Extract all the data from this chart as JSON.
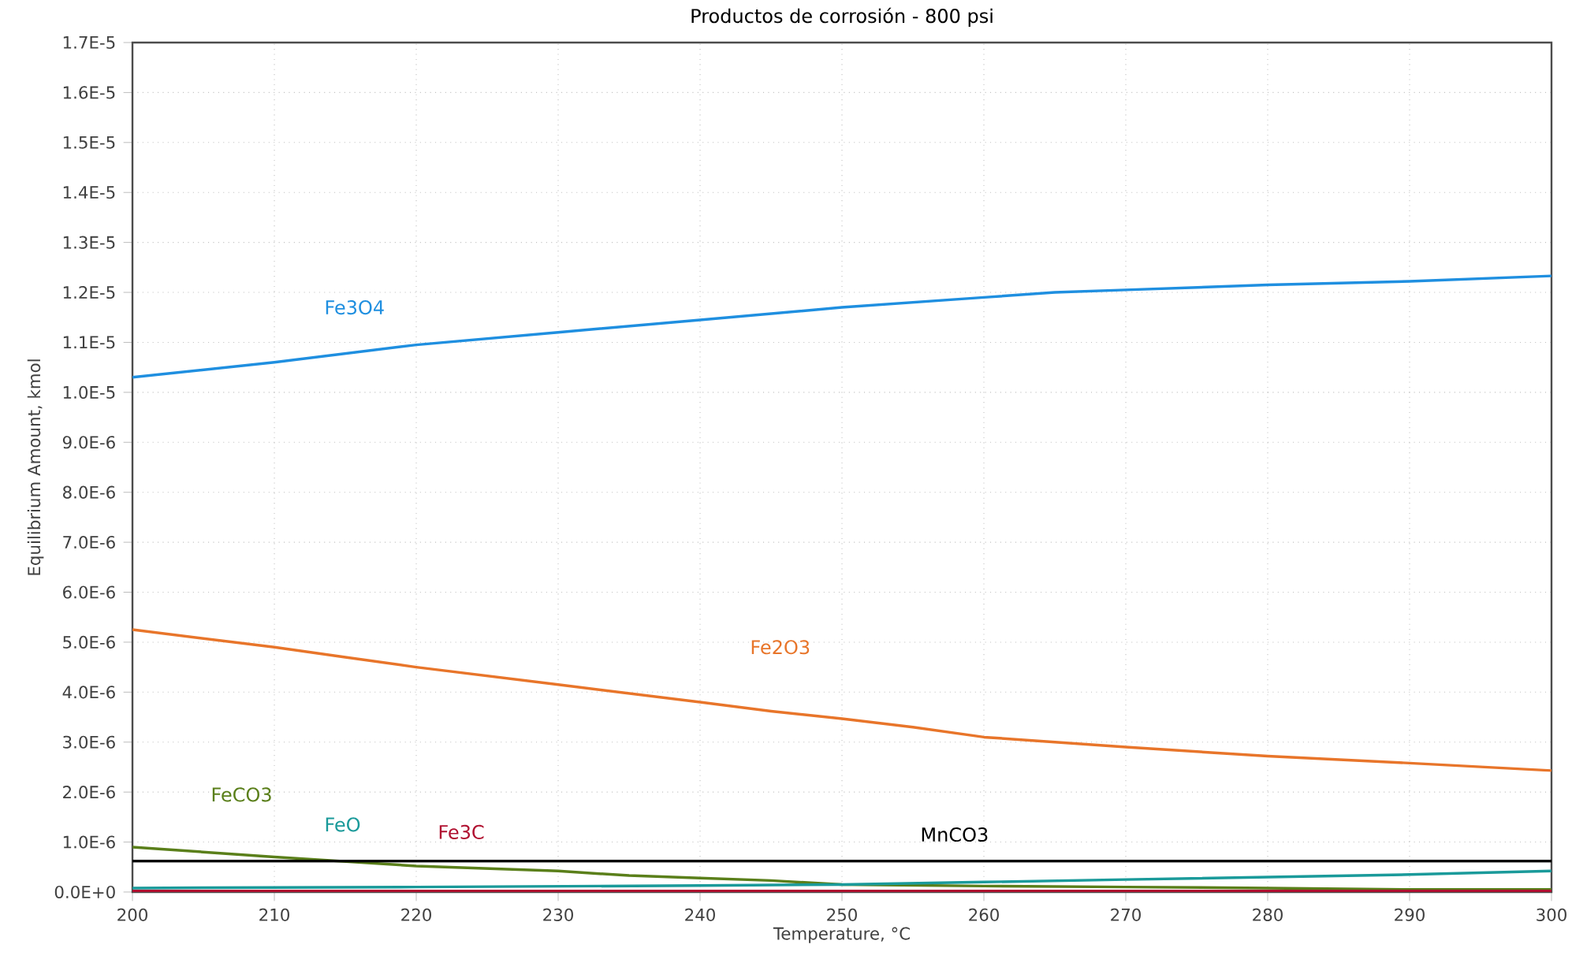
{
  "chart_data": {
    "type": "line",
    "title": "Productos de corrosión - 800 psi",
    "xlabel": "Temperature, °C",
    "ylabel": "Equilibrium Amount, kmol",
    "x": [
      200,
      210,
      220,
      230,
      240,
      250,
      260,
      265,
      270,
      280,
      290,
      300
    ],
    "series": [
      {
        "name": "Fe3O4",
        "color": "#1f8fe0",
        "values": [
          1.03e-05,
          1.06e-05,
          1.095e-05,
          1.12e-05,
          1.145e-05,
          1.17e-05,
          1.19e-05,
          1.2e-05,
          1.205e-05,
          1.215e-05,
          1.222e-05,
          1.233e-05
        ]
      },
      {
        "name": "Fe2O3",
        "color": "#e8752a",
        "x": [
          200,
          210,
          215,
          220,
          230,
          240,
          245,
          250,
          255,
          260,
          270,
          280,
          290,
          300
        ],
        "values": [
          5.25e-06,
          4.9e-06,
          4.7e-06,
          4.5e-06,
          4.15e-06,
          3.8e-06,
          3.62e-06,
          3.47e-06,
          3.3e-06,
          3.1e-06,
          2.9e-06,
          2.72e-06,
          2.58e-06,
          2.43e-06
        ]
      },
      {
        "name": "FeCO3",
        "color": "#5a7f1a",
        "x": [
          200,
          210,
          220,
          230,
          235,
          240,
          245,
          250,
          260,
          270,
          280,
          290,
          300
        ],
        "values": [
          9e-07,
          7e-07,
          5.2e-07,
          4.2e-07,
          3.3e-07,
          2.8e-07,
          2.3e-07,
          1.5e-07,
          1.2e-07,
          1e-07,
          8e-08,
          5e-08,
          5e-08
        ]
      },
      {
        "name": "FeO",
        "color": "#1a9a9a",
        "x": [
          200,
          220,
          240,
          250,
          260,
          270,
          280,
          290,
          300
        ],
        "values": [
          8e-08,
          1e-07,
          1.3e-07,
          1.5e-07,
          2e-07,
          2.5e-07,
          3e-07,
          3.5e-07,
          4.2e-07
        ]
      },
      {
        "name": "Fe3C",
        "color": "#b01030",
        "x": [
          200,
          300
        ],
        "values": [
          2e-08,
          2e-08
        ]
      },
      {
        "name": "MnCO3",
        "color": "#000000",
        "x": [
          200,
          300
        ],
        "values": [
          6.2e-07,
          6.2e-07
        ]
      }
    ],
    "xlim": [
      200,
      300
    ],
    "xticks": [
      200,
      210,
      220,
      230,
      240,
      250,
      260,
      270,
      280,
      290,
      300
    ],
    "ylim": [
      0,
      1.7e-05
    ],
    "yticks": [
      {
        "value": 0,
        "label": "0.0E+0"
      },
      {
        "value": 1e-06,
        "label": "1.0E-6"
      },
      {
        "value": 2e-06,
        "label": "2.0E-6"
      },
      {
        "value": 3e-06,
        "label": "3.0E-6"
      },
      {
        "value": 4e-06,
        "label": "4.0E-6"
      },
      {
        "value": 5e-06,
        "label": "5.0E-6"
      },
      {
        "value": 6e-06,
        "label": "6.0E-6"
      },
      {
        "value": 7e-06,
        "label": "7.0E-6"
      },
      {
        "value": 8e-06,
        "label": "8.0E-6"
      },
      {
        "value": 9e-06,
        "label": "9.0E-6"
      },
      {
        "value": 1e-05,
        "label": "1.0E-5"
      },
      {
        "value": 1.1e-05,
        "label": "1.1E-5"
      },
      {
        "value": 1.2e-05,
        "label": "1.2E-5"
      },
      {
        "value": 1.3e-05,
        "label": "1.3E-5"
      },
      {
        "value": 1.4e-05,
        "label": "1.4E-5"
      },
      {
        "value": 1.5e-05,
        "label": "1.5E-5"
      },
      {
        "value": 1.6e-05,
        "label": "1.6E-5"
      },
      {
        "value": 1.7e-05,
        "label": "1.7E-5"
      }
    ],
    "grid": true,
    "legend": false,
    "marker": "none",
    "line_style": "solid"
  }
}
